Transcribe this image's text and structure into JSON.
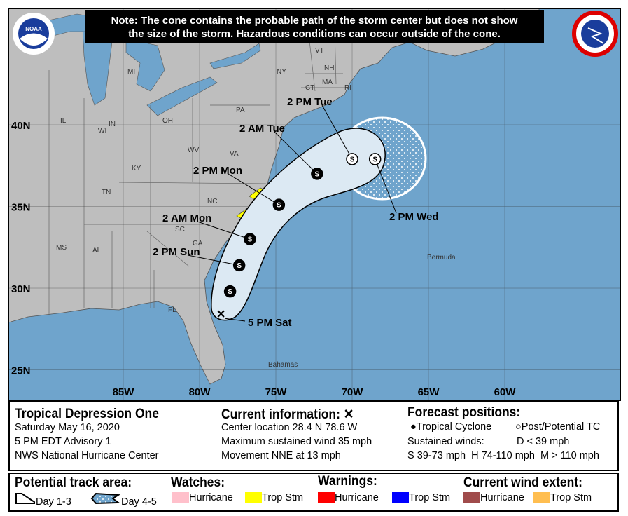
{
  "note": {
    "line1": "Note: The cone contains the probable path of the storm center but does not show",
    "line2": "the size of the storm. Hazardous conditions can occur outside of the cone."
  },
  "logos": {
    "left": "NOAA",
    "right": "NATIONAL WEATHER SERVICE"
  },
  "map": {
    "ocean_color": "#6fa4cc",
    "land_color": "#bebebe",
    "lon_labels": [
      "85W",
      "80W",
      "75W",
      "70W",
      "65W",
      "60W"
    ],
    "lat_labels": [
      "40N",
      "35N",
      "30N",
      "25N"
    ],
    "state_labels": [
      "WI",
      "MI",
      "NY",
      "VT",
      "NH",
      "MA",
      "CT",
      "RI",
      "PA",
      "IL",
      "IN",
      "OH",
      "WV",
      "KY",
      "VA",
      "TN",
      "NC",
      "SC",
      "GA",
      "MS",
      "AL",
      "FL"
    ],
    "place_labels": [
      "Bermuda",
      "Bahamas"
    ],
    "current": {
      "lat": 28.4,
      "lon": -78.6,
      "label": "5 PM Sat"
    },
    "forecast_points": [
      {
        "lat": 29.8,
        "lon": -78.0,
        "type": "S",
        "label": ""
      },
      {
        "lat": 31.4,
        "lon": -77.4,
        "type": "S",
        "label": "2 PM Sun"
      },
      {
        "lat": 33.0,
        "lon": -76.7,
        "type": "S",
        "label": "2 AM Mon"
      },
      {
        "lat": 35.1,
        "lon": -74.8,
        "type": "S",
        "label": "2 PM Mon"
      },
      {
        "lat": 37.0,
        "lon": -72.3,
        "type": "S",
        "label": "2 AM Tue"
      },
      {
        "lat": 37.9,
        "lon": -70.0,
        "type": "S",
        "post_tropical": true,
        "label": "2 PM Tue"
      },
      {
        "lat": 37.9,
        "lon": -68.5,
        "type": "S",
        "post_tropical": true,
        "label": "2 PM Wed"
      }
    ],
    "warning_color": "#ffff00"
  },
  "info": {
    "title": "Tropical Depression One",
    "date": "Saturday May 16, 2020",
    "advisory": "5 PM EDT Advisory 1",
    "center": "NWS National Hurricane Center",
    "current_header": "Current information: ✕",
    "location": "Center location 28.4 N 78.6 W",
    "wind": "Maximum sustained wind 35 mph",
    "movement": "Movement NNE at 13 mph",
    "forecast_header": "Forecast positions:",
    "tc": "Tropical Cyclone",
    "ptc": "Post/Potential TC",
    "sustained": "Sustained winds:",
    "d": "D < 39 mph",
    "s": "S 39-73 mph",
    "hh": "H 74-110 mph",
    "m": "M > 110 mph"
  },
  "legend": {
    "track_header": "Potential track area:",
    "day13": "Day 1-3",
    "day45": "Day 4-5",
    "watches_header": "Watches:",
    "warnings_header": "Warnings:",
    "wind_header": "Current wind extent:",
    "items": [
      {
        "label": "Hurricane",
        "color": "#ffc0cb"
      },
      {
        "label": "Trop Stm",
        "color": "#ffff00"
      },
      {
        "label": "Hurricane",
        "color": "#ff0000"
      },
      {
        "label": "Trop Stm",
        "color": "#0000ff"
      },
      {
        "label": "Hurricane",
        "color": "#a04b4b"
      },
      {
        "label": "Trop Stm",
        "color": "#ffbe50"
      }
    ]
  }
}
